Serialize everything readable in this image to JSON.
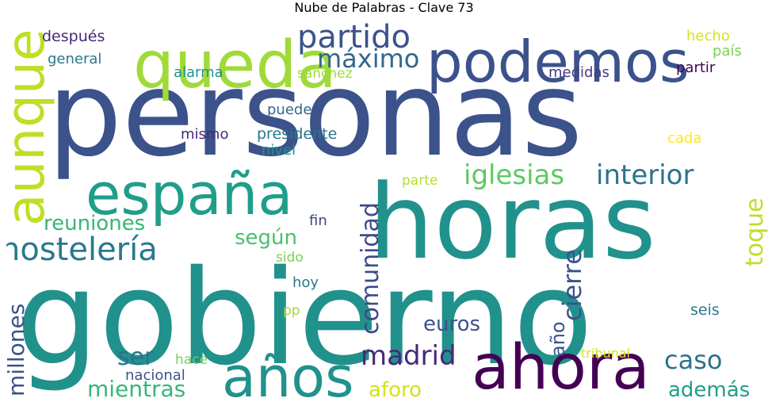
{
  "title": "Nube de Palabras - Clave 73",
  "words": [
    {
      "text": "gobierno",
      "color": "#21918c"
    },
    {
      "text": "personas",
      "color": "#3b528b"
    },
    {
      "text": "horas",
      "color": "#21918c"
    },
    {
      "text": "podemos",
      "color": "#3b528b"
    },
    {
      "text": "queda",
      "color": "#a0da39"
    },
    {
      "text": "ahora",
      "color": "#440154"
    },
    {
      "text": "años",
      "color": "#21918c"
    },
    {
      "text": "españa",
      "color": "#1f9e89"
    },
    {
      "text": "aunque",
      "color": "#bddf26"
    },
    {
      "text": "hostelería",
      "color": "#2a788e"
    },
    {
      "text": "partido",
      "color": "#3b528b"
    },
    {
      "text": "máximo",
      "color": "#31688e"
    },
    {
      "text": "iglesias",
      "color": "#5ec962"
    },
    {
      "text": "interior",
      "color": "#2c728e"
    },
    {
      "text": "madrid",
      "color": "#482878"
    },
    {
      "text": "comunidad",
      "color": "#3e4989"
    },
    {
      "text": "cierre",
      "color": "#3b528b"
    },
    {
      "text": "millones",
      "color": "#3b528b"
    },
    {
      "text": "caso",
      "color": "#2c728e"
    },
    {
      "text": "reuniones",
      "color": "#35b779"
    },
    {
      "text": "según",
      "color": "#4ac16d"
    },
    {
      "text": "toque",
      "color": "#bddf26"
    },
    {
      "text": "mientras",
      "color": "#35b779"
    },
    {
      "text": "ser",
      "color": "#2c728e"
    },
    {
      "text": "aforo",
      "color": "#d2e21b"
    },
    {
      "text": "además",
      "color": "#1f9e89"
    },
    {
      "text": "euros",
      "color": "#3b528b"
    },
    {
      "text": "año",
      "color": "#3b528b"
    },
    {
      "text": "después",
      "color": "#482878"
    },
    {
      "text": "general",
      "color": "#2a788e"
    },
    {
      "text": "alarma",
      "color": "#21918c"
    },
    {
      "text": "sánchez",
      "color": "#a0da39"
    },
    {
      "text": "medidas",
      "color": "#443983"
    },
    {
      "text": "hecho",
      "color": "#d2e21b"
    },
    {
      "text": "país",
      "color": "#7ad151"
    },
    {
      "text": "partir",
      "color": "#440154"
    },
    {
      "text": "puede",
      "color": "#31688e"
    },
    {
      "text": "mismo",
      "color": "#482878"
    },
    {
      "text": "presidente",
      "color": "#2a788e"
    },
    {
      "text": "nivel",
      "color": "#21918c"
    },
    {
      "text": "cada",
      "color": "#fde725"
    },
    {
      "text": "parte",
      "color": "#b5de2b"
    },
    {
      "text": "fin",
      "color": "#3e4989"
    },
    {
      "text": "sido",
      "color": "#7ad151"
    },
    {
      "text": "hoy",
      "color": "#2a788e"
    },
    {
      "text": "pp",
      "color": "#a0da39"
    },
    {
      "text": "seis",
      "color": "#2a788e"
    },
    {
      "text": "hace",
      "color": "#7ad151"
    },
    {
      "text": "nacional",
      "color": "#3b528b"
    },
    {
      "text": "tribunal",
      "color": "#d2e21b"
    }
  ]
}
